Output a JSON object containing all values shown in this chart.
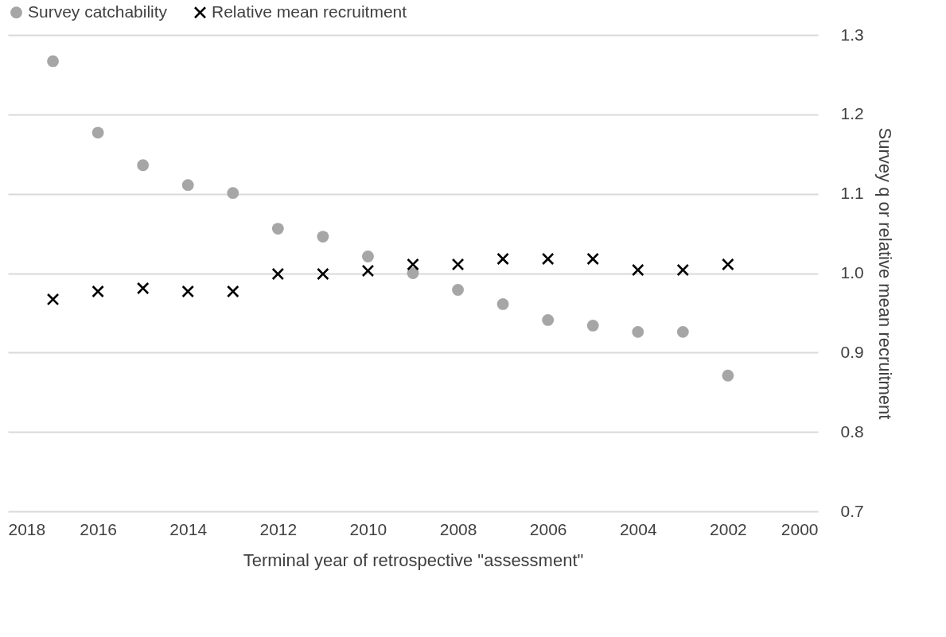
{
  "chart_data": {
    "type": "scatter",
    "xlabel": "Terminal year of retrospective \"assessment\"",
    "ylabel": "Survey q or relative mean recruitment",
    "x": [
      2017,
      2016,
      2015,
      2014,
      2013,
      2012,
      2011,
      2010,
      2009,
      2008,
      2007,
      2006,
      2005,
      2004,
      2003,
      2002
    ],
    "series": [
      {
        "name": "Survey catchability",
        "color": "#a6a6a6",
        "marker": "circle",
        "values": [
          1.267,
          1.177,
          1.136,
          1.111,
          1.101,
          1.056,
          1.046,
          1.021,
          1.0,
          0.979,
          0.961,
          0.941,
          0.934,
          0.926,
          0.926,
          0.871
        ]
      },
      {
        "name": "Relative mean recruitment",
        "color": "#000000",
        "marker": "cross",
        "values": [
          0.967,
          0.977,
          0.981,
          0.977,
          0.977,
          0.999,
          0.999,
          1.003,
          1.011,
          1.011,
          1.018,
          1.018,
          1.018,
          1.004,
          1.004,
          1.011
        ]
      }
    ],
    "xlim": [
      2018,
      2000
    ],
    "xticks": [
      2018,
      2016,
      2014,
      2012,
      2010,
      2008,
      2006,
      2004,
      2002,
      2000
    ],
    "ylim": [
      0.7,
      1.3
    ],
    "yticks": [
      {
        "value": 0.7,
        "label": "0.7"
      },
      {
        "value": 0.8,
        "label": "0.8"
      },
      {
        "value": 0.9,
        "label": "0.9"
      },
      {
        "value": 1.0,
        "label": "1.0"
      },
      {
        "value": 1.1,
        "label": "1.1"
      },
      {
        "value": 1.2,
        "label": "1.2"
      },
      {
        "value": 1.3,
        "label": "1.3"
      }
    ],
    "grid": "y",
    "legend": "top"
  }
}
